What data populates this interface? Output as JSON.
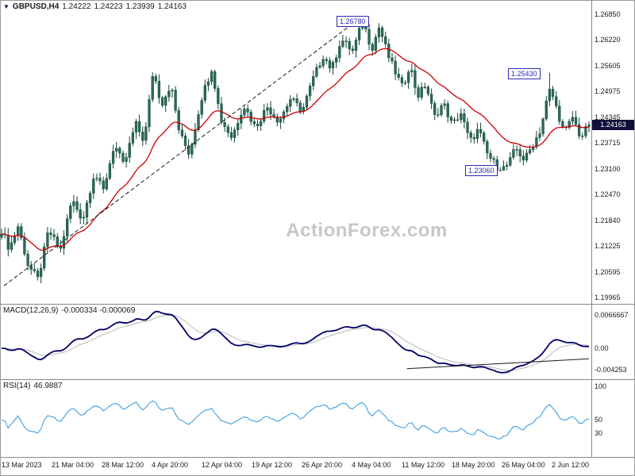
{
  "header": {
    "symbol": "GBPUSD,H4",
    "open": "1.24222",
    "high": "1.24223",
    "low": "1.23939",
    "close": "1.24163"
  },
  "watermark": {
    "text": "ActionForex.com"
  },
  "price_scale": {
    "ticks": [
      "1.26850",
      "1.26220",
      "1.25605",
      "1.24975",
      "1.24345",
      "1.23715",
      "1.23100",
      "1.22470",
      "1.21840",
      "1.21225",
      "1.20595",
      "1.19965"
    ],
    "current": "1.24163"
  },
  "time_scale": [
    "13 Mar 2023",
    "21 Mar 04:00",
    "28 Mar 12:00",
    "4 Apr 20:00",
    "12 Apr 04:00",
    "19 Apr 12:00",
    "26 Apr 20:00",
    "4 May 04:00",
    "11 May 12:00",
    "18 May 20:00",
    "26 May 04:00",
    "2 Jun 12:00"
  ],
  "annotations": {
    "high_label": "1.26780",
    "reaction_high_label": "1.25430",
    "low_label": "1.23060"
  },
  "macd": {
    "label": "MACD(12,26,9)",
    "values": "-0.000334 -0.000069",
    "scale": [
      "0.0066667",
      "0.00",
      "-0.004253"
    ]
  },
  "rsi": {
    "label": "RSI(14)",
    "value": "46.9887",
    "scale": [
      "100",
      "50",
      "30"
    ]
  },
  "chart_data": {
    "type": "candlestick",
    "symbol": "GBPUSD",
    "timeframe": "H4",
    "x_range": [
      "13 Mar 2023",
      "2 Jun 2023"
    ],
    "y_range": [
      1.19965,
      1.2685
    ],
    "bars": 180,
    "price_path": [
      [
        0.0,
        1.216
      ],
      [
        0.013,
        1.2115
      ],
      [
        0.028,
        1.217
      ],
      [
        0.045,
        1.2075
      ],
      [
        0.062,
        1.204
      ],
      [
        0.08,
        1.216
      ],
      [
        0.1,
        1.211
      ],
      [
        0.12,
        1.2235
      ],
      [
        0.138,
        1.2185
      ],
      [
        0.158,
        1.23
      ],
      [
        0.173,
        1.2255
      ],
      [
        0.192,
        1.237
      ],
      [
        0.208,
        1.2315
      ],
      [
        0.228,
        1.242
      ],
      [
        0.243,
        1.2375
      ],
      [
        0.258,
        1.255
      ],
      [
        0.272,
        1.2465
      ],
      [
        0.288,
        1.2515
      ],
      [
        0.303,
        1.2395
      ],
      [
        0.32,
        1.2345
      ],
      [
        0.34,
        1.248
      ],
      [
        0.358,
        1.2555
      ],
      [
        0.373,
        1.243
      ],
      [
        0.392,
        1.2385
      ],
      [
        0.412,
        1.2465
      ],
      [
        0.432,
        1.241
      ],
      [
        0.452,
        1.246
      ],
      [
        0.472,
        1.2425
      ],
      [
        0.492,
        1.248
      ],
      [
        0.512,
        1.245
      ],
      [
        0.532,
        1.2535
      ],
      [
        0.548,
        1.2585
      ],
      [
        0.562,
        1.255
      ],
      [
        0.578,
        1.2625
      ],
      [
        0.598,
        1.2595
      ],
      [
        0.615,
        1.267
      ],
      [
        0.63,
        1.26
      ],
      [
        0.643,
        1.2655
      ],
      [
        0.658,
        1.2585
      ],
      [
        0.67,
        1.2545
      ],
      [
        0.683,
        1.2505
      ],
      [
        0.695,
        1.2565
      ],
      [
        0.708,
        1.2485
      ],
      [
        0.722,
        1.2515
      ],
      [
        0.737,
        1.2435
      ],
      [
        0.752,
        1.247
      ],
      [
        0.767,
        1.2415
      ],
      [
        0.782,
        1.2445
      ],
      [
        0.797,
        1.2375
      ],
      [
        0.812,
        1.2405
      ],
      [
        0.827,
        1.2345
      ],
      [
        0.843,
        1.2315
      ],
      [
        0.86,
        1.231
      ],
      [
        0.875,
        1.236
      ],
      [
        0.89,
        1.233
      ],
      [
        0.905,
        1.237
      ],
      [
        0.918,
        1.2405
      ],
      [
        0.933,
        1.251
      ],
      [
        0.945,
        1.2455
      ],
      [
        0.958,
        1.2395
      ],
      [
        0.972,
        1.2435
      ],
      [
        0.986,
        1.2385
      ],
      [
        1.0,
        1.24163
      ]
    ],
    "pinned": {
      "high": [
        0.6145,
        1.2678
      ],
      "low": [
        0.8603,
        1.2306
      ],
      "spike": [
        0.933,
        1.2543
      ],
      "last_close": 1.24163
    },
    "overlays": {
      "ma": {
        "type": "EMA",
        "period": 20
      },
      "trendline": {
        "from": [
          0.004,
          1.2025
        ],
        "to": [
          0.6145,
          1.268
        ],
        "style": "dashed"
      }
    },
    "indicators": {
      "macd": {
        "fast": 12,
        "slow": 26,
        "signal": 9,
        "current_macd": -0.000334,
        "current_signal": -6.9e-05,
        "scale": [
          0.0066667,
          0,
          -0.004253
        ],
        "trendline": {
          "from": [
            0.69,
            -0.0041
          ],
          "to": [
            1.0,
            -0.0021
          ]
        }
      },
      "rsi": {
        "period": 14,
        "current": 46.9887,
        "scale": [
          100,
          50,
          30
        ]
      }
    },
    "key_levels": [
      1.2678,
      1.2543,
      1.2306,
      1.24163
    ],
    "colors": {
      "candle": "#2a6a5a",
      "candle_outline": "#15483b",
      "ma": "#cc0000",
      "trendline": "#1a1a1a",
      "macd_line": "#000066",
      "macd_signal": "#b8b8b8",
      "macd_trendline": "#1a1a1a",
      "rsi_line": "#3f9fe0",
      "annotation": "#2a2ab0",
      "price_flag_bg": "#10103c",
      "watermark": "#c7c7c7"
    }
  }
}
